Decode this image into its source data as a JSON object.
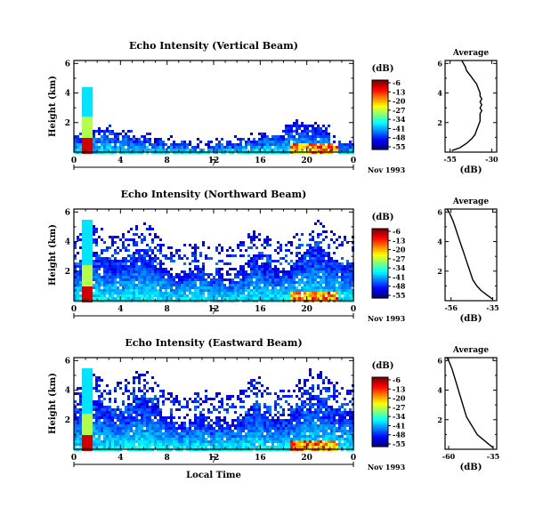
{
  "chart_data": [
    {
      "type": "heatmap",
      "title": "Echo Intensity (Vertical Beam)",
      "xlabel": "",
      "ylabel": "Height (km)",
      "x_ticks": [
        "0",
        "4",
        "8",
        "12",
        "16",
        "20",
        "0"
      ],
      "y_ticks": [
        "2",
        "4",
        "6"
      ],
      "ylim": [
        0,
        6.2
      ],
      "xlim_hours": [
        0,
        24
      ],
      "date_tick": "7",
      "date_label": "Nov 1993",
      "colorbar": {
        "label": "(dB)",
        "ticks": [
          "-6",
          "-13",
          "-20",
          "-27",
          "-34",
          "-41",
          "-48",
          "-55"
        ]
      },
      "profile": {
        "title": "Average",
        "xlabel": "(dB)",
        "x_ticks": [
          "-55",
          "-30"
        ],
        "y_ticks": [
          "2",
          "4",
          "6"
        ],
        "xlim": [
          -58,
          -27
        ],
        "ylim": [
          0,
          6.2
        ],
        "x": [
          -54,
          -49,
          -45,
          -42,
          -40,
          -39,
          -38,
          -37,
          -37,
          -37,
          -36,
          -37,
          -36,
          -37,
          -36,
          -37,
          -37,
          -38,
          -39,
          -41,
          -43,
          -45,
          -46,
          -47,
          -48
        ],
        "y": [
          0.1,
          0.3,
          0.6,
          0.9,
          1.2,
          1.5,
          1.8,
          2.1,
          2.4,
          2.6,
          2.8,
          3.0,
          3.2,
          3.4,
          3.6,
          3.8,
          4.0,
          4.3,
          4.6,
          4.9,
          5.2,
          5.5,
          5.8,
          6.0,
          6.2
        ]
      }
    },
    {
      "type": "heatmap",
      "title": "Echo Intensity (Northward Beam)",
      "xlabel": "",
      "ylabel": "Height (km)",
      "x_ticks": [
        "0",
        "4",
        "8",
        "12",
        "16",
        "20",
        "0"
      ],
      "y_ticks": [
        "2",
        "4",
        "6"
      ],
      "ylim": [
        0,
        6.2
      ],
      "xlim_hours": [
        0,
        24
      ],
      "date_tick": "7",
      "date_label": "Nov 1993",
      "colorbar": {
        "label": "(dB)",
        "ticks": [
          "-6",
          "-13",
          "-20",
          "-27",
          "-34",
          "-41",
          "-48",
          "-55"
        ]
      },
      "profile": {
        "title": "Average",
        "xlabel": "(dB)",
        "x_ticks": [
          "-56",
          "-35"
        ],
        "y_ticks": [
          "2",
          "4",
          "6"
        ],
        "xlim": [
          -59,
          -33
        ],
        "ylim": [
          0,
          6.2
        ],
        "x": [
          -35,
          -38,
          -41,
          -43,
          -45,
          -46,
          -47,
          -48,
          -49,
          -50,
          -51,
          -52,
          -53,
          -54,
          -55,
          -56,
          -57,
          -58
        ],
        "y": [
          0.1,
          0.4,
          0.7,
          1.0,
          1.4,
          1.8,
          2.2,
          2.6,
          3.0,
          3.4,
          3.8,
          4.2,
          4.6,
          5.0,
          5.4,
          5.7,
          6.0,
          6.2
        ]
      }
    },
    {
      "type": "heatmap",
      "title": "Echo Intensity (Eastward Beam)",
      "xlabel": "Local Time",
      "ylabel": "Height (km)",
      "x_ticks": [
        "0",
        "4",
        "8",
        "12",
        "16",
        "20",
        "0"
      ],
      "y_ticks": [
        "2",
        "4",
        "6"
      ],
      "ylim": [
        0,
        6.2
      ],
      "xlim_hours": [
        0,
        24
      ],
      "date_tick": "7",
      "date_label": "Nov 1993",
      "colorbar": {
        "label": "(dB)",
        "ticks": [
          "-6",
          "-13",
          "-20",
          "-27",
          "-34",
          "-41",
          "-48",
          "-55"
        ]
      },
      "profile": {
        "title": "Average",
        "xlabel": "(dB)",
        "x_ticks": [
          "-60",
          "-35"
        ],
        "y_ticks": [
          "2",
          "4",
          "6"
        ],
        "xlim": [
          -62,
          -33
        ],
        "ylim": [
          0,
          6.2
        ],
        "x": [
          -35,
          -38,
          -41,
          -44,
          -46,
          -48,
          -50,
          -51,
          -52,
          -53,
          -54,
          -55,
          -56,
          -57,
          -58,
          -59,
          -60,
          -61
        ],
        "y": [
          0.1,
          0.4,
          0.7,
          1.0,
          1.4,
          1.8,
          2.2,
          2.6,
          3.0,
          3.4,
          3.8,
          4.2,
          4.6,
          5.0,
          5.4,
          5.7,
          6.0,
          6.2
        ]
      }
    }
  ]
}
